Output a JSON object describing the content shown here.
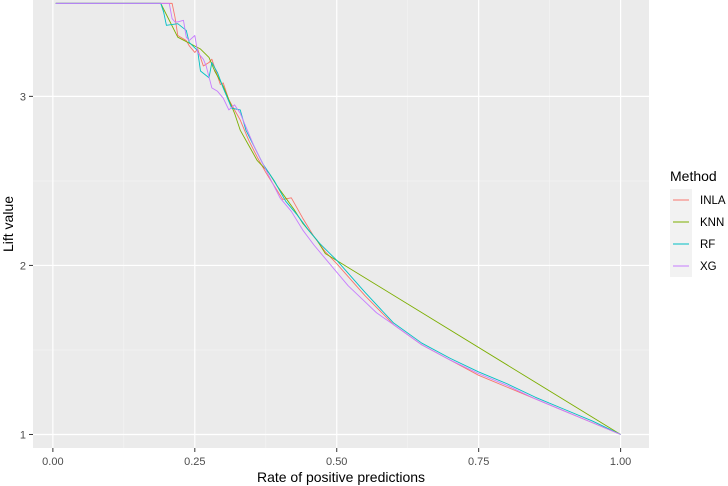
{
  "chart_data": {
    "type": "line",
    "xlabel": "Rate of positive predictions",
    "ylabel": "Lift value",
    "xlim": [
      -0.035,
      1.05
    ],
    "ylim": [
      0.92,
      3.57
    ],
    "x_ticks": [
      0.0,
      0.25,
      0.5,
      0.75,
      1.0
    ],
    "x_tick_labels": [
      "0.00",
      "0.25",
      "0.50",
      "0.75",
      "1.00"
    ],
    "y_ticks": [
      1,
      2,
      3
    ],
    "y_tick_labels": [
      "1",
      "2",
      "3"
    ],
    "grid": true,
    "legend": {
      "title": "Method",
      "position": "right"
    },
    "series": [
      {
        "name": "INLA",
        "color": "#F8766D",
        "x": [
          0.005,
          0.21,
          0.215,
          0.22,
          0.235,
          0.24,
          0.25,
          0.255,
          0.265,
          0.275,
          0.28,
          0.285,
          0.29,
          0.295,
          0.3,
          0.31,
          0.33,
          0.345,
          0.36,
          0.375,
          0.39,
          0.405,
          0.42,
          0.44,
          0.46,
          0.48,
          0.5,
          0.55,
          0.6,
          0.65,
          0.7,
          0.75,
          0.8,
          0.85,
          0.9,
          0.95,
          1.0
        ],
        "y": [
          3.55,
          3.55,
          3.47,
          3.36,
          3.33,
          3.3,
          3.26,
          3.28,
          3.18,
          3.2,
          3.22,
          3.17,
          3.12,
          3.07,
          3.08,
          2.98,
          2.86,
          2.74,
          2.64,
          2.55,
          2.47,
          2.39,
          2.4,
          2.28,
          2.17,
          2.08,
          2.01,
          1.82,
          1.65,
          1.53,
          1.44,
          1.35,
          1.28,
          1.21,
          1.14,
          1.07,
          1.0
        ]
      },
      {
        "name": "KNN",
        "color": "#7CAE00",
        "x": [
          0.005,
          0.19,
          0.22,
          0.26,
          0.275,
          0.285,
          0.3,
          0.31,
          0.32,
          0.33,
          0.345,
          0.36,
          0.38,
          0.395,
          0.41,
          0.425,
          0.44,
          0.465,
          0.48,
          1.0
        ],
        "y": [
          3.55,
          3.55,
          3.35,
          3.28,
          3.23,
          3.15,
          3.06,
          2.98,
          2.9,
          2.8,
          2.71,
          2.62,
          2.55,
          2.47,
          2.4,
          2.33,
          2.25,
          2.15,
          2.07,
          1.0
        ]
      },
      {
        "name": "RF",
        "color": "#00BFC4",
        "x": [
          0.005,
          0.19,
          0.195,
          0.2,
          0.22,
          0.235,
          0.24,
          0.255,
          0.26,
          0.275,
          0.28,
          0.29,
          0.3,
          0.31,
          0.315,
          0.33,
          0.34,
          0.355,
          0.37,
          0.39,
          0.41,
          0.43,
          0.45,
          0.47,
          0.5,
          0.55,
          0.6,
          0.65,
          0.7,
          0.75,
          0.8,
          0.85,
          0.9,
          0.95,
          1.0
        ],
        "y": [
          3.55,
          3.55,
          3.5,
          3.42,
          3.43,
          3.39,
          3.32,
          3.27,
          3.15,
          3.11,
          3.2,
          3.14,
          3.05,
          2.97,
          2.93,
          2.92,
          2.8,
          2.7,
          2.6,
          2.5,
          2.38,
          2.3,
          2.21,
          2.13,
          2.03,
          1.84,
          1.66,
          1.54,
          1.45,
          1.37,
          1.3,
          1.22,
          1.15,
          1.08,
          1.0
        ]
      },
      {
        "name": "XG",
        "color": "#C77CFF",
        "x": [
          0.005,
          0.205,
          0.21,
          0.215,
          0.22,
          0.23,
          0.235,
          0.24,
          0.25,
          0.255,
          0.265,
          0.27,
          0.28,
          0.29,
          0.3,
          0.31,
          0.32,
          0.33,
          0.34,
          0.355,
          0.37,
          0.385,
          0.4,
          0.42,
          0.44,
          0.46,
          0.48,
          0.5,
          0.52,
          0.545,
          0.57,
          0.6,
          0.65,
          0.7,
          0.75,
          0.8,
          0.85,
          0.9,
          0.95,
          1.0
        ],
        "y": [
          3.55,
          3.55,
          3.46,
          3.44,
          3.44,
          3.45,
          3.35,
          3.33,
          3.36,
          3.26,
          3.22,
          3.18,
          3.05,
          3.03,
          2.99,
          2.92,
          2.95,
          2.9,
          2.82,
          2.7,
          2.6,
          2.5,
          2.4,
          2.32,
          2.21,
          2.12,
          2.04,
          1.96,
          1.88,
          1.8,
          1.72,
          1.65,
          1.53,
          1.44,
          1.36,
          1.29,
          1.21,
          1.14,
          1.07,
          1.0
        ]
      }
    ]
  }
}
